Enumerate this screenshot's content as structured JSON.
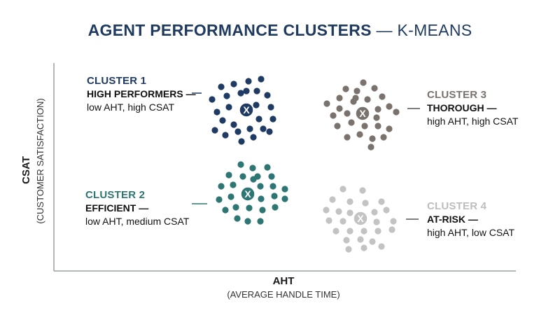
{
  "title_main": "AGENT PERFORMANCE CLUSTERS",
  "title_sep": " — ",
  "title_sub": "K-MEANS",
  "chart_data": {
    "type": "scatter",
    "title": "AGENT PERFORMANCE CLUSTERS — K-MEANS",
    "xlabel": "AHT",
    "xlabel_sub": "(AVERAGE HANDLE TIME)",
    "ylabel": "CSAT",
    "ylabel_sub": "(CUSTOMER SATISFACTION)",
    "grid": false,
    "centroid_marker": "X",
    "series": [
      {
        "id": "c1",
        "name": "CLUSTER 1",
        "segment": "HIGH PERFORMERS",
        "description": "low AHT, high CSAT",
        "color": "#1f3a63",
        "centroid": [
          352,
          157
        ],
        "points": [
          [
            316,
            124
          ],
          [
            334,
            120
          ],
          [
            355,
            116
          ],
          [
            373,
            113
          ],
          [
            303,
            142
          ],
          [
            324,
            137
          ],
          [
            344,
            133
          ],
          [
            367,
            130
          ],
          [
            382,
            136
          ],
          [
            310,
            160
          ],
          [
            327,
            153
          ],
          [
            366,
            150
          ],
          [
            387,
            153
          ],
          [
            318,
            172
          ],
          [
            334,
            178
          ],
          [
            370,
            170
          ],
          [
            390,
            170
          ],
          [
            307,
            186
          ],
          [
            322,
            193
          ],
          [
            340,
            188
          ],
          [
            357,
            184
          ],
          [
            376,
            184
          ],
          [
            345,
            202
          ],
          [
            362,
            196
          ],
          [
            385,
            188
          ],
          [
            352,
            130
          ]
        ]
      },
      {
        "id": "c2",
        "name": "CLUSTER 2",
        "segment": "EFFICIENT",
        "description": "low AHT, medium CSAT",
        "color": "#2e7673",
        "centroid": [
          354,
          277
        ],
        "points": [
          [
            344,
            235
          ],
          [
            361,
            240
          ],
          [
            382,
            239
          ],
          [
            327,
            250
          ],
          [
            347,
            252
          ],
          [
            368,
            252
          ],
          [
            388,
            252
          ],
          [
            316,
            266
          ],
          [
            333,
            264
          ],
          [
            372,
            266
          ],
          [
            390,
            266
          ],
          [
            407,
            270
          ],
          [
            313,
            285
          ],
          [
            330,
            281
          ],
          [
            373,
            284
          ],
          [
            392,
            280
          ],
          [
            407,
            284
          ],
          [
            322,
            300
          ],
          [
            337,
            296
          ],
          [
            356,
            297
          ],
          [
            375,
            300
          ],
          [
            393,
            296
          ],
          [
            339,
            312
          ],
          [
            354,
            316
          ],
          [
            372,
            316
          ],
          [
            362,
            256
          ]
        ]
      },
      {
        "id": "c3",
        "name": "CLUSTER 3",
        "segment": "THOROUGH",
        "description": "high AHT, high CSAT",
        "color": "#7a736d",
        "centroid": [
          518,
          162
        ],
        "points": [
          [
            519,
            118
          ],
          [
            494,
            127
          ],
          [
            510,
            130
          ],
          [
            535,
            126
          ],
          [
            485,
            140
          ],
          [
            505,
            145
          ],
          [
            525,
            142
          ],
          [
            546,
            138
          ],
          [
            467,
            148
          ],
          [
            485,
            155
          ],
          [
            540,
            156
          ],
          [
            556,
            152
          ],
          [
            476,
            165
          ],
          [
            496,
            162
          ],
          [
            538,
            168
          ],
          [
            566,
            160
          ],
          [
            482,
            180
          ],
          [
            502,
            175
          ],
          [
            521,
            180
          ],
          [
            540,
            180
          ],
          [
            556,
            184
          ],
          [
            496,
            196
          ],
          [
            514,
            192
          ],
          [
            532,
            198
          ],
          [
            548,
            196
          ],
          [
            530,
            210
          ],
          [
            508,
            140
          ]
        ]
      },
      {
        "id": "c4",
        "name": "CLUSTER 4",
        "segment": "AT-RISK",
        "description": "high AHT, low CSAT",
        "color": "#c3c3c3",
        "centroid": [
          515,
          312
        ],
        "points": [
          [
            490,
            270
          ],
          [
            518,
            272
          ],
          [
            475,
            285
          ],
          [
            500,
            288
          ],
          [
            522,
            290
          ],
          [
            545,
            288
          ],
          [
            466,
            300
          ],
          [
            484,
            302
          ],
          [
            500,
            304
          ],
          [
            535,
            303
          ],
          [
            552,
            300
          ],
          [
            470,
            315
          ],
          [
            490,
            316
          ],
          [
            538,
            317
          ],
          [
            562,
            316
          ],
          [
            480,
            330
          ],
          [
            500,
            330
          ],
          [
            520,
            330
          ],
          [
            540,
            330
          ],
          [
            560,
            328
          ],
          [
            495,
            343
          ],
          [
            515,
            342
          ],
          [
            532,
            345
          ],
          [
            498,
            356
          ],
          [
            520,
            354
          ],
          [
            545,
            352
          ]
        ]
      }
    ]
  }
}
